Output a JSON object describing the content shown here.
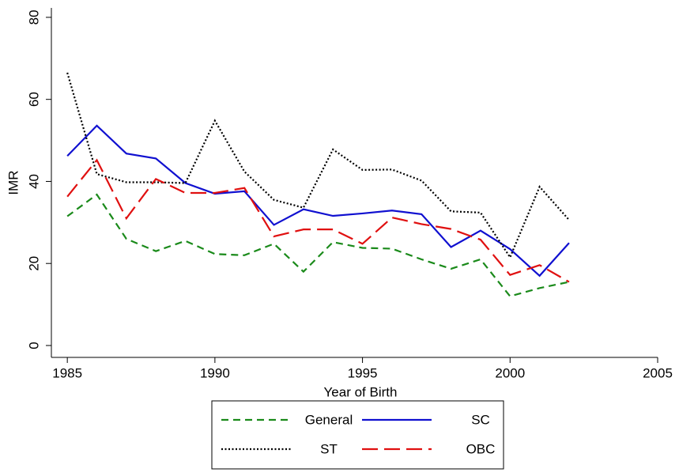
{
  "chart_data": {
    "type": "line",
    "x_label": "Year of Birth",
    "y_label": "IMR",
    "x": [
      1985,
      1986,
      1987,
      1988,
      1989,
      1990,
      1991,
      1992,
      1993,
      1994,
      1995,
      1996,
      1997,
      1998,
      1999,
      2000,
      2001,
      2002
    ],
    "series": [
      {
        "name": "General",
        "color": "#1a8a1a",
        "line_style": "dashed",
        "values": [
          31.5,
          36.8,
          26,
          23,
          25.5,
          22.3,
          22,
          24.8,
          18,
          25.2,
          23.8,
          23.6,
          21,
          18.7,
          21,
          12,
          14,
          15.5
        ]
      },
      {
        "name": "SC",
        "color": "#1010d0",
        "line_style": "solid",
        "values": [
          46.2,
          53.6,
          46.8,
          45.6,
          39.6,
          37,
          37.6,
          29.4,
          33.2,
          31.6,
          32.2,
          32.9,
          32,
          24,
          28,
          23.5,
          17,
          25
        ]
      },
      {
        "name": "ST",
        "color": "#000000",
        "line_style": "dotted",
        "values": [
          66.5,
          41.8,
          39.8,
          39.8,
          39.6,
          54.8,
          42.4,
          35.5,
          33.6,
          47.8,
          42.8,
          42.9,
          40.2,
          32.7,
          32.4,
          21.5,
          38.7,
          30.6
        ]
      },
      {
        "name": "OBC",
        "color": "#e01010",
        "line_style": "longdash",
        "values": [
          36.3,
          45.2,
          31,
          40.6,
          37.2,
          37.2,
          38.4,
          26.6,
          28.3,
          28.3,
          24.8,
          31.2,
          29.6,
          28.4,
          25.8,
          17.2,
          19.6,
          15.5
        ]
      }
    ],
    "xlim": [
      1984.46,
      2005
    ],
    "xticks": [
      1985,
      1990,
      1995,
      2000,
      2005
    ],
    "ylim": [
      -2.9,
      82.3
    ],
    "yticks": [
      0,
      20,
      40,
      60,
      80
    ],
    "grid": false,
    "legend": "bottom"
  }
}
